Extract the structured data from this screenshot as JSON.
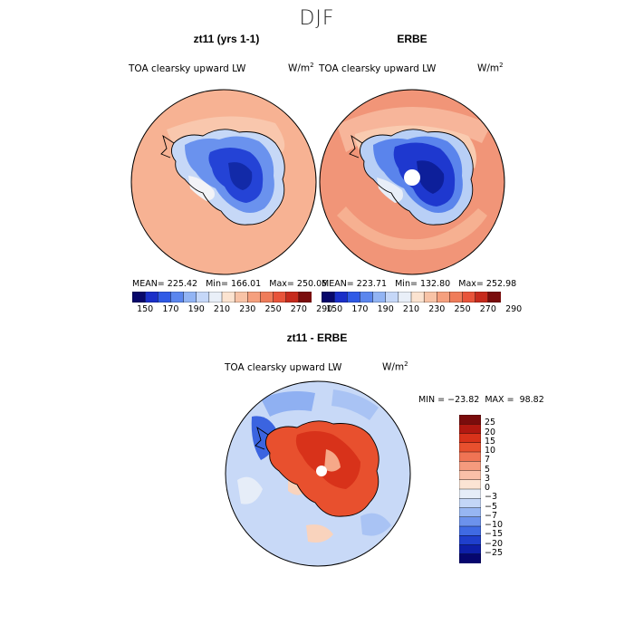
{
  "figure_title": "DJF",
  "chart_data": [
    {
      "type": "heatmap",
      "title": "zt11 (yrs 1-1)",
      "field_label": "TOA clearsky upward LW",
      "units_base": "W/m",
      "units_exp": "2",
      "mean_label": "MEAN=",
      "mean": "225.42",
      "min_label": "Min=",
      "min": "166.01",
      "max_label": "Max=",
      "max": "250.05",
      "colorbar_ticks": [
        "150",
        "170",
        "190",
        "210",
        "230",
        "250",
        "270",
        "290"
      ]
    },
    {
      "type": "heatmap",
      "title": "ERBE",
      "field_label": "TOA clearsky upward LW",
      "units_base": "W/m",
      "units_exp": "2",
      "mean_label": "MEAN=",
      "mean": "223.71",
      "min_label": "Min=",
      "min": "132.80",
      "max_label": "Max=",
      "max": "252.98",
      "colorbar_ticks": [
        "150",
        "170",
        "190",
        "210",
        "230",
        "250",
        "270",
        "290"
      ]
    },
    {
      "type": "heatmap",
      "title": "zt11 - ERBE",
      "field_label": "TOA clearsky upward LW",
      "units_base": "W/m",
      "units_exp": "2",
      "min_label": "MIN =",
      "min": "−23.82",
      "max_label": "MAX =",
      "max": "98.82",
      "colorbar_ticks": [
        "25",
        "20",
        "15",
        "10",
        "7",
        "5",
        "3",
        "0",
        "−3",
        "−5",
        "−7",
        "−10",
        "−15",
        "−20",
        "−25"
      ]
    }
  ],
  "colors": {
    "abs_scale": [
      "#08086b",
      "#1a2fc8",
      "#2f5ae6",
      "#5b86ee",
      "#92b4f4",
      "#c5d7f8",
      "#e9eff8",
      "#fbe3d0",
      "#f8c3a6",
      "#f5a07e",
      "#ef7c5a",
      "#e8543a",
      "#c62a1c",
      "#7a0c0c"
    ],
    "diff_scale": [
      "#7a0c0c",
      "#b11810",
      "#d8321a",
      "#e8502e",
      "#f07454",
      "#f59a7d",
      "#f9c0a8",
      "#fbe4d4",
      "#e6edf8",
      "#c3d6f7",
      "#97b6f2",
      "#6c92ec",
      "#3f6ae3",
      "#1f3fcc",
      "#0e1fa8",
      "#06066e"
    ],
    "ocean_model": "#f8b99a",
    "ocean_erbe": "#f4987a",
    "antarctica_high": "#1a3bd4",
    "antarctica_mid": "#4a73ea",
    "antarctica_edge": "#bcd2f6"
  }
}
